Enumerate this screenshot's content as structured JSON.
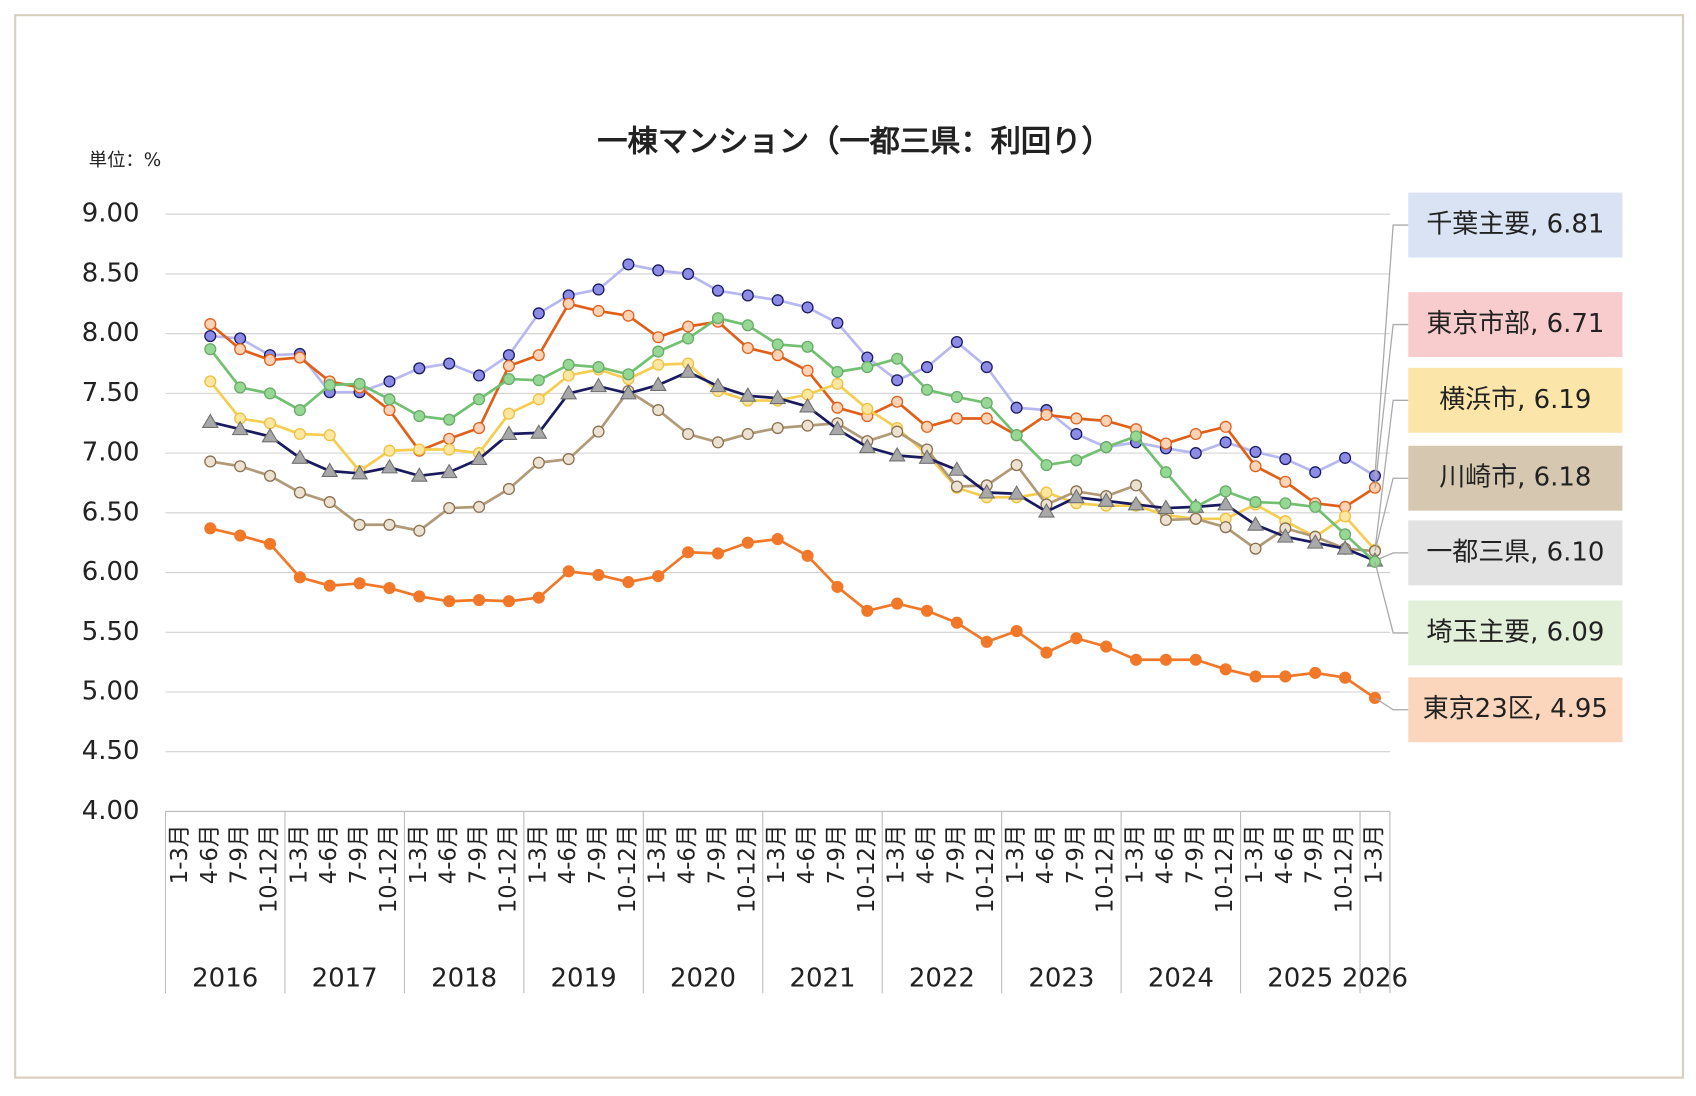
{
  "chart_data": {
    "type": "line",
    "title": "一棟マンション（一都三県：利回り）",
    "unit_label": "単位：%",
    "categories": [
      "1-3月",
      "4-6月",
      "7-9月",
      "10-12月",
      "1-3月",
      "4-6月",
      "7-9月",
      "10-12月",
      "1-3月",
      "4-6月",
      "7-9月",
      "10-12月",
      "1-3月",
      "4-6月",
      "7-9月",
      "10-12月",
      "1-3月",
      "4-6月",
      "7-9月",
      "10-12月",
      "1-3月",
      "4-6月",
      "7-9月",
      "10-12月",
      "1-3月",
      "4-6月",
      "7-9月",
      "10-12月",
      "1-3月",
      "4-6月",
      "7-9月",
      "10-12月",
      "1-3月",
      "4-6月",
      "7-9月",
      "10-12月",
      "1-3月",
      "4-6月",
      "7-9月",
      "10-12月",
      "1-3月"
    ],
    "years": [
      "2016",
      "2017",
      "2018",
      "2019",
      "2020",
      "2021",
      "2022",
      "2023",
      "2024",
      "2025",
      "2026"
    ],
    "ylim": [
      4,
      9
    ],
    "yticks": [
      {
        "value": 4,
        "label": "4.00"
      },
      {
        "value": 4.5,
        "label": "4.50"
      },
      {
        "value": 5,
        "label": "5.00"
      },
      {
        "value": 5.5,
        "label": "5.50"
      },
      {
        "value": 6,
        "label": "6.00"
      },
      {
        "value": 6.5,
        "label": "6.50"
      },
      {
        "value": 7,
        "label": "7.00"
      },
      {
        "value": 7.5,
        "label": "7.50"
      },
      {
        "value": 8,
        "label": "8.00"
      },
      {
        "value": 8.5,
        "label": "8.50"
      },
      {
        "value": 9,
        "label": "9.00"
      }
    ],
    "grid": true,
    "series": [
      {
        "name": "千葉主要",
        "color": "#b8b8f0",
        "marker": "circle",
        "marker_color": "#8c8ce6",
        "marker_stroke": "#1a1a60",
        "label_color": "#dae3f3",
        "values": [
          null,
          7.98,
          7.96,
          7.82,
          7.83,
          7.51,
          7.51,
          7.6,
          7.71,
          7.75,
          7.65,
          7.82,
          8.17,
          8.32,
          8.37,
          8.58,
          8.53,
          8.5,
          8.36,
          8.32,
          8.28,
          8.22,
          8.09,
          7.8,
          7.61,
          7.72,
          7.93,
          7.72,
          7.38,
          7.36,
          7.16,
          7.05,
          7.09,
          7.04,
          7.0,
          7.09,
          7.01,
          6.95,
          6.84,
          6.96,
          6.81
        ],
        "value_labels": [
          null,
          null,
          null,
          null,
          null,
          null,
          null,
          null,
          null,
          null,
          null,
          null,
          null,
          null,
          null,
          null,
          null,
          null,
          null,
          null,
          null,
          null,
          null,
          null,
          null,
          null,
          null,
          null,
          null,
          null,
          null,
          null,
          null,
          null,
          null,
          null,
          null,
          null,
          null,
          null,
          "千葉主要, 6.81"
        ]
      },
      {
        "name": "東京市部",
        "color": "#e0601a",
        "marker": "circle",
        "marker_color": "#fcd3b6",
        "marker_stroke": "#e0601a",
        "label_color": "#f8cccc",
        "values": [
          null,
          8.08,
          7.87,
          7.78,
          7.8,
          7.6,
          7.55,
          7.36,
          7.02,
          7.12,
          7.21,
          7.73,
          7.82,
          8.25,
          8.19,
          8.15,
          7.97,
          8.06,
          8.1,
          7.88,
          7.82,
          7.69,
          7.38,
          7.31,
          7.43,
          7.22,
          7.29,
          7.29,
          7.15,
          7.32,
          7.29,
          7.27,
          7.2,
          7.08,
          7.16,
          7.22,
          6.89,
          6.76,
          6.58,
          6.55,
          6.71
        ],
        "value_labels": [
          null,
          null,
          null,
          null,
          null,
          null,
          null,
          null,
          null,
          null,
          null,
          null,
          null,
          null,
          null,
          null,
          null,
          null,
          null,
          null,
          null,
          null,
          null,
          null,
          null,
          null,
          null,
          null,
          null,
          null,
          null,
          null,
          null,
          null,
          null,
          null,
          null,
          null,
          null,
          null,
          "東京市部, 6.71"
        ]
      },
      {
        "name": "横浜市",
        "color": "#f5cd50",
        "marker": "circle",
        "marker_color": "#fde6a0",
        "marker_stroke": "#f0c040",
        "label_color": "#fbe5a8",
        "values": [
          null,
          7.6,
          7.29,
          7.25,
          7.16,
          7.15,
          6.85,
          7.02,
          7.03,
          7.03,
          7.0,
          7.33,
          7.45,
          7.65,
          7.7,
          7.62,
          7.74,
          7.75,
          7.52,
          7.44,
          7.44,
          7.49,
          7.58,
          7.37,
          7.21,
          6.99,
          6.71,
          6.63,
          6.63,
          6.67,
          6.58,
          6.56,
          6.56,
          6.48,
          6.45,
          6.45,
          6.57,
          6.43,
          6.3,
          6.47,
          6.19
        ],
        "value_labels": [
          null,
          null,
          null,
          null,
          null,
          null,
          null,
          null,
          null,
          null,
          null,
          null,
          null,
          null,
          null,
          null,
          null,
          null,
          null,
          null,
          null,
          null,
          null,
          null,
          null,
          null,
          null,
          null,
          null,
          null,
          null,
          null,
          null,
          null,
          null,
          null,
          null,
          null,
          null,
          null,
          "横浜市, 6.19"
        ]
      },
      {
        "name": "川崎市",
        "color": "#b09a78",
        "marker": "circle",
        "marker_color": "#ece2d2",
        "marker_stroke": "#8a7050",
        "label_color": "#d6c8b0",
        "values": [
          null,
          6.93,
          6.89,
          6.81,
          6.67,
          6.59,
          6.4,
          6.4,
          6.35,
          6.54,
          6.55,
          6.7,
          6.92,
          6.95,
          7.18,
          7.52,
          7.36,
          7.16,
          7.09,
          7.16,
          7.21,
          7.23,
          7.25,
          7.1,
          7.18,
          7.03,
          6.72,
          6.73,
          6.9,
          6.57,
          6.68,
          6.64,
          6.73,
          6.44,
          6.45,
          6.38,
          6.2,
          6.37,
          6.3,
          6.2,
          6.18
        ],
        "value_labels": [
          null,
          null,
          null,
          null,
          null,
          null,
          null,
          null,
          null,
          null,
          null,
          null,
          null,
          null,
          null,
          null,
          null,
          null,
          null,
          null,
          null,
          null,
          null,
          null,
          null,
          null,
          null,
          null,
          null,
          null,
          null,
          null,
          null,
          null,
          null,
          null,
          null,
          null,
          null,
          null,
          "川崎市, 6.18"
        ]
      },
      {
        "name": "一都三県",
        "color": "#1a1a60",
        "marker": "triangle",
        "marker_color": "#a8a8a8",
        "marker_stroke": "#707070",
        "label_color": "#e2e2e2",
        "values": [
          null,
          7.26,
          7.2,
          7.14,
          6.96,
          6.85,
          6.83,
          6.88,
          6.81,
          6.84,
          6.95,
          7.16,
          7.17,
          7.5,
          7.56,
          7.5,
          7.57,
          7.68,
          7.56,
          7.48,
          7.46,
          7.39,
          7.2,
          7.05,
          6.98,
          6.96,
          6.86,
          6.67,
          6.66,
          6.51,
          6.63,
          6.6,
          6.57,
          6.54,
          6.55,
          6.57,
          6.4,
          6.3,
          6.25,
          6.2,
          6.1
        ],
        "value_labels": [
          null,
          null,
          null,
          null,
          null,
          null,
          null,
          null,
          null,
          null,
          null,
          null,
          null,
          null,
          null,
          null,
          null,
          null,
          null,
          null,
          null,
          null,
          null,
          null,
          null,
          null,
          null,
          null,
          null,
          null,
          null,
          null,
          null,
          null,
          null,
          null,
          null,
          null,
          null,
          null,
          "一都三県, 6.10"
        ]
      },
      {
        "name": "埼玉主要",
        "color": "#72c072",
        "marker": "circle",
        "marker_color": "#94d894",
        "marker_stroke": "#6aaa6a",
        "label_color": "#e2efd9",
        "values": [
          null,
          7.87,
          7.55,
          7.5,
          7.36,
          7.57,
          7.58,
          7.45,
          7.31,
          7.28,
          7.45,
          7.62,
          7.61,
          7.74,
          7.72,
          7.66,
          7.85,
          7.96,
          8.13,
          8.07,
          7.91,
          7.89,
          7.68,
          7.72,
          7.79,
          7.53,
          7.47,
          7.42,
          7.15,
          6.9,
          6.94,
          7.05,
          7.14,
          6.84,
          6.55,
          6.68,
          6.59,
          6.58,
          6.55,
          6.32,
          6.09
        ],
        "value_labels": [
          null,
          null,
          null,
          null,
          null,
          null,
          null,
          null,
          null,
          null,
          null,
          null,
          null,
          null,
          null,
          null,
          null,
          null,
          null,
          null,
          null,
          null,
          null,
          null,
          null,
          null,
          null,
          null,
          null,
          null,
          null,
          null,
          null,
          null,
          null,
          null,
          null,
          null,
          null,
          null,
          "埼玉主要, 6.09"
        ]
      },
      {
        "name": "東京23区",
        "color": "#f07828",
        "marker": "circle",
        "marker_color": "#f07828",
        "marker_stroke": "#f07828",
        "label_color": "#fbd5bc",
        "values": [
          null,
          6.37,
          6.31,
          6.24,
          5.96,
          5.89,
          5.91,
          5.87,
          5.8,
          5.76,
          5.77,
          5.76,
          5.79,
          6.01,
          5.98,
          5.92,
          5.97,
          6.17,
          6.16,
          6.25,
          6.28,
          6.14,
          5.88,
          5.68,
          5.74,
          5.68,
          5.58,
          5.42,
          5.51,
          5.33,
          5.45,
          5.38,
          5.27,
          5.27,
          5.27,
          5.19,
          5.13,
          5.13,
          5.16,
          5.12,
          4.95
        ],
        "value_labels": [
          null,
          null,
          null,
          null,
          null,
          null,
          null,
          null,
          null,
          null,
          null,
          null,
          null,
          null,
          null,
          null,
          null,
          null,
          null,
          null,
          null,
          null,
          null,
          null,
          null,
          null,
          null,
          null,
          null,
          null,
          null,
          null,
          null,
          null,
          null,
          null,
          null,
          null,
          null,
          null,
          "東京23区, 4.95"
        ]
      }
    ]
  }
}
